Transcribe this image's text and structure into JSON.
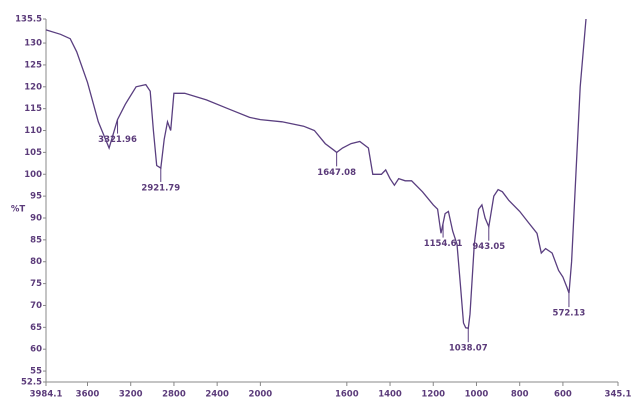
{
  "chart_data": {
    "type": "line",
    "ylabel": "%T",
    "color": "#5a3f80",
    "x": [
      3984,
      3850,
      3760,
      3700,
      3600,
      3500,
      3400,
      3322,
      3250,
      3150,
      3060,
      3020,
      2990,
      2960,
      2922,
      2890,
      2860,
      2830,
      2800,
      2700,
      2500,
      2300,
      2100,
      2000,
      1900,
      1800,
      1750,
      1700,
      1660,
      1647,
      1620,
      1580,
      1540,
      1500,
      1480,
      1440,
      1420,
      1400,
      1380,
      1360,
      1330,
      1300,
      1250,
      1200,
      1180,
      1164,
      1145,
      1130,
      1110,
      1090,
      1075,
      1060,
      1050,
      1038,
      1030,
      1010,
      990,
      975,
      960,
      943,
      920,
      900,
      880,
      850,
      800,
      760,
      720,
      700,
      680,
      650,
      620,
      600,
      580,
      572,
      560,
      540,
      520,
      493
    ],
    "values": [
      133,
      132,
      131,
      128,
      121,
      112,
      106,
      112.5,
      116,
      120,
      120.5,
      119,
      110,
      102,
      101.4,
      108,
      112,
      110,
      118.5,
      118.5,
      117,
      115,
      113,
      112.5,
      112,
      111,
      110,
      107,
      105.5,
      105,
      106,
      107,
      107.5,
      106,
      100,
      100,
      101,
      99,
      97.5,
      99,
      98.5,
      98.5,
      96,
      93,
      92,
      86.5,
      91,
      91.5,
      87,
      84,
      75,
      66,
      64.9,
      64.8,
      68,
      84,
      92,
      93,
      90,
      88,
      95,
      96.5,
      96,
      94,
      91.5,
      89,
      86.5,
      82,
      83,
      82,
      78,
      76.5,
      74,
      72.8,
      80,
      100,
      120,
      135.5
    ],
    "peaks": [
      3321.96,
      2921.79,
      1647.08,
      1154.61,
      1038.07,
      943.05,
      572.13
    ],
    "xlim": [
      3984.1,
      345.1
    ],
    "x_scale_break": 2000,
    "xticks": [
      3984.1,
      3600,
      3200,
      2800,
      2400,
      2000,
      1600,
      1400,
      1200,
      1000,
      800,
      600,
      345.1
    ],
    "ylim": [
      52.5,
      135.5
    ],
    "yticks": [
      52.5,
      55,
      60,
      65,
      70,
      75,
      80,
      85,
      90,
      95,
      100,
      105,
      110,
      115,
      120,
      125,
      130,
      135.5
    ]
  }
}
